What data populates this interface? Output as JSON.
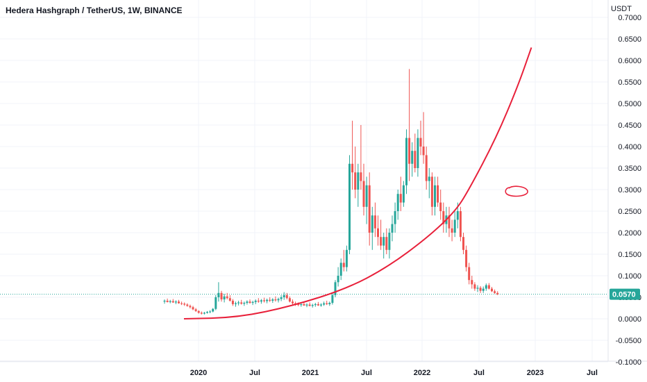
{
  "header": {
    "title": "Hedera Hashgraph / TetherUS, 1W, BINANCE",
    "currency": "USDT"
  },
  "price_label": "0.0570",
  "colors": {
    "up": "#26a69a",
    "down": "#ef5350",
    "ma_line": "#e8203a",
    "price_tag": "#26a69a",
    "grid": "#f0f3fa"
  },
  "chart_data": {
    "type": "candlestick",
    "title": "Hedera Hashgraph / TetherUS, 1W, BINANCE",
    "ylim": [
      -0.1,
      0.7
    ],
    "yticks": [
      "-0.1000",
      "-0.0500",
      "0.0000",
      "0.0500",
      "0.1000",
      "0.1500",
      "0.2000",
      "0.2500",
      "0.3000",
      "0.3500",
      "0.4000",
      "0.4500",
      "0.5000",
      "0.5500",
      "0.6000",
      "0.6500",
      "0.7000"
    ],
    "xticks": [
      "2020",
      "Jul",
      "2021",
      "Jul",
      "2022",
      "Jul",
      "2023",
      "Jul"
    ],
    "current_price": 0.057,
    "grid": true,
    "price_series": [
      [
        0.04,
        0.045,
        0.035,
        0.042
      ],
      [
        0.042,
        0.047,
        0.038,
        0.039
      ],
      [
        0.039,
        0.044,
        0.036,
        0.041
      ],
      [
        0.041,
        0.046,
        0.037,
        0.038
      ],
      [
        0.038,
        0.043,
        0.034,
        0.04
      ],
      [
        0.04,
        0.044,
        0.035,
        0.036
      ],
      [
        0.036,
        0.04,
        0.032,
        0.035
      ],
      [
        0.035,
        0.038,
        0.03,
        0.033
      ],
      [
        0.033,
        0.036,
        0.028,
        0.03
      ],
      [
        0.03,
        0.033,
        0.024,
        0.027
      ],
      [
        0.027,
        0.03,
        0.02,
        0.022
      ],
      [
        0.022,
        0.025,
        0.016,
        0.018
      ],
      [
        0.018,
        0.02,
        0.012,
        0.014
      ],
      [
        0.014,
        0.017,
        0.01,
        0.012
      ],
      [
        0.012,
        0.016,
        0.01,
        0.014
      ],
      [
        0.014,
        0.018,
        0.012,
        0.016
      ],
      [
        0.016,
        0.02,
        0.013,
        0.017
      ],
      [
        0.017,
        0.025,
        0.015,
        0.023
      ],
      [
        0.023,
        0.055,
        0.02,
        0.05
      ],
      [
        0.05,
        0.085,
        0.04,
        0.06
      ],
      [
        0.06,
        0.065,
        0.04,
        0.045
      ],
      [
        0.045,
        0.058,
        0.038,
        0.052
      ],
      [
        0.052,
        0.06,
        0.045,
        0.048
      ],
      [
        0.048,
        0.055,
        0.04,
        0.042
      ],
      [
        0.042,
        0.046,
        0.03,
        0.034
      ],
      [
        0.034,
        0.04,
        0.028,
        0.036
      ],
      [
        0.036,
        0.042,
        0.031,
        0.038
      ],
      [
        0.038,
        0.044,
        0.033,
        0.035
      ],
      [
        0.035,
        0.04,
        0.03,
        0.037
      ],
      [
        0.037,
        0.043,
        0.033,
        0.04
      ],
      [
        0.04,
        0.045,
        0.035,
        0.037
      ],
      [
        0.037,
        0.042,
        0.032,
        0.039
      ],
      [
        0.039,
        0.045,
        0.034,
        0.042
      ],
      [
        0.042,
        0.048,
        0.037,
        0.04
      ],
      [
        0.04,
        0.046,
        0.035,
        0.043
      ],
      [
        0.043,
        0.049,
        0.038,
        0.041
      ],
      [
        0.041,
        0.047,
        0.036,
        0.044
      ],
      [
        0.044,
        0.05,
        0.039,
        0.042
      ],
      [
        0.042,
        0.048,
        0.037,
        0.045
      ],
      [
        0.045,
        0.052,
        0.04,
        0.043
      ],
      [
        0.043,
        0.049,
        0.038,
        0.046
      ],
      [
        0.046,
        0.055,
        0.041,
        0.05
      ],
      [
        0.05,
        0.062,
        0.044,
        0.055
      ],
      [
        0.055,
        0.06,
        0.045,
        0.048
      ],
      [
        0.048,
        0.052,
        0.038,
        0.04
      ],
      [
        0.04,
        0.045,
        0.033,
        0.036
      ],
      [
        0.036,
        0.04,
        0.03,
        0.034
      ],
      [
        0.034,
        0.038,
        0.029,
        0.032
      ],
      [
        0.032,
        0.037,
        0.028,
        0.034
      ],
      [
        0.034,
        0.038,
        0.03,
        0.031
      ],
      [
        0.031,
        0.036,
        0.027,
        0.033
      ],
      [
        0.033,
        0.038,
        0.029,
        0.03
      ],
      [
        0.03,
        0.035,
        0.026,
        0.032
      ],
      [
        0.032,
        0.037,
        0.028,
        0.034
      ],
      [
        0.034,
        0.039,
        0.03,
        0.031
      ],
      [
        0.031,
        0.036,
        0.028,
        0.033
      ],
      [
        0.033,
        0.04,
        0.03,
        0.036
      ],
      [
        0.036,
        0.042,
        0.032,
        0.034
      ],
      [
        0.034,
        0.04,
        0.03,
        0.037
      ],
      [
        0.037,
        0.06,
        0.033,
        0.055
      ],
      [
        0.055,
        0.09,
        0.05,
        0.085
      ],
      [
        0.085,
        0.12,
        0.075,
        0.1
      ],
      [
        0.1,
        0.14,
        0.09,
        0.13
      ],
      [
        0.13,
        0.16,
        0.11,
        0.12
      ],
      [
        0.12,
        0.17,
        0.11,
        0.16
      ],
      [
        0.16,
        0.38,
        0.15,
        0.36
      ],
      [
        0.36,
        0.46,
        0.3,
        0.34
      ],
      [
        0.34,
        0.4,
        0.28,
        0.3
      ],
      [
        0.3,
        0.36,
        0.26,
        0.34
      ],
      [
        0.34,
        0.45,
        0.3,
        0.32
      ],
      [
        0.32,
        0.36,
        0.24,
        0.26
      ],
      [
        0.26,
        0.33,
        0.22,
        0.31
      ],
      [
        0.31,
        0.34,
        0.17,
        0.2
      ],
      [
        0.2,
        0.26,
        0.16,
        0.24
      ],
      [
        0.24,
        0.27,
        0.19,
        0.21
      ],
      [
        0.21,
        0.24,
        0.17,
        0.19
      ],
      [
        0.19,
        0.23,
        0.16,
        0.17
      ],
      [
        0.17,
        0.2,
        0.14,
        0.19
      ],
      [
        0.19,
        0.21,
        0.15,
        0.16
      ],
      [
        0.16,
        0.21,
        0.14,
        0.2
      ],
      [
        0.2,
        0.24,
        0.18,
        0.22
      ],
      [
        0.22,
        0.27,
        0.2,
        0.25
      ],
      [
        0.25,
        0.3,
        0.23,
        0.29
      ],
      [
        0.29,
        0.33,
        0.25,
        0.27
      ],
      [
        0.27,
        0.32,
        0.26,
        0.31
      ],
      [
        0.31,
        0.44,
        0.29,
        0.42
      ],
      [
        0.42,
        0.58,
        0.32,
        0.36
      ],
      [
        0.36,
        0.41,
        0.33,
        0.39
      ],
      [
        0.39,
        0.43,
        0.34,
        0.35
      ],
      [
        0.35,
        0.44,
        0.33,
        0.42
      ],
      [
        0.42,
        0.46,
        0.38,
        0.4
      ],
      [
        0.4,
        0.48,
        0.36,
        0.38
      ],
      [
        0.38,
        0.4,
        0.3,
        0.32
      ],
      [
        0.32,
        0.35,
        0.28,
        0.33
      ],
      [
        0.33,
        0.34,
        0.24,
        0.26
      ],
      [
        0.26,
        0.33,
        0.24,
        0.31
      ],
      [
        0.31,
        0.33,
        0.26,
        0.27
      ],
      [
        0.27,
        0.3,
        0.23,
        0.25
      ],
      [
        0.25,
        0.27,
        0.2,
        0.22
      ],
      [
        0.22,
        0.26,
        0.2,
        0.24
      ],
      [
        0.24,
        0.26,
        0.19,
        0.21
      ],
      [
        0.21,
        0.23,
        0.18,
        0.2
      ],
      [
        0.2,
        0.25,
        0.19,
        0.23
      ],
      [
        0.23,
        0.27,
        0.21,
        0.25
      ],
      [
        0.25,
        0.26,
        0.18,
        0.19
      ],
      [
        0.19,
        0.2,
        0.15,
        0.16
      ],
      [
        0.16,
        0.17,
        0.11,
        0.12
      ],
      [
        0.12,
        0.13,
        0.08,
        0.09
      ],
      [
        0.09,
        0.1,
        0.07,
        0.08
      ],
      [
        0.08,
        0.085,
        0.065,
        0.07
      ],
      [
        0.07,
        0.078,
        0.062,
        0.072
      ],
      [
        0.072,
        0.076,
        0.06,
        0.065
      ],
      [
        0.065,
        0.075,
        0.06,
        0.07
      ],
      [
        0.07,
        0.082,
        0.065,
        0.078
      ],
      [
        0.078,
        0.083,
        0.068,
        0.07
      ],
      [
        0.07,
        0.074,
        0.062,
        0.064
      ],
      [
        0.064,
        0.068,
        0.058,
        0.06
      ],
      [
        0.06,
        0.064,
        0.055,
        0.057
      ]
    ],
    "ma_line": [
      [
        0,
        0.0
      ],
      [
        20,
        0.003
      ],
      [
        40,
        0.03
      ],
      [
        60,
        0.07
      ],
      [
        75,
        0.12
      ],
      [
        90,
        0.19
      ],
      [
        100,
        0.25
      ],
      [
        105,
        0.3
      ],
      [
        115,
        0.42
      ],
      [
        123,
        0.54
      ],
      [
        128,
        0.63
      ]
    ]
  }
}
